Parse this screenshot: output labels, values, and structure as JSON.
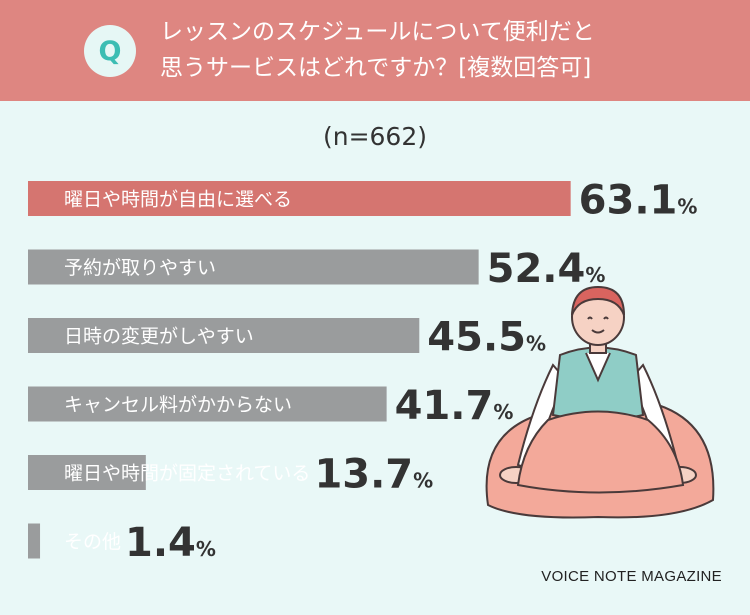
{
  "header": {
    "badge": "Q",
    "question_line1": "レッスンのスケジュールについて便利だと",
    "question_line2": "思うサービスはどれですか？[複数回答可]"
  },
  "sample": "(n=662)",
  "brand": "VOICE NOTE MAGAZINE",
  "colors": {
    "header_bg": "#de8681",
    "highlight_bar": "#d57570",
    "bar": "#9a9c9d",
    "background": "#e9f8f7",
    "badge_text": "#3cbdb3"
  },
  "chart_data": {
    "type": "bar",
    "orientation": "horizontal",
    "categories": [
      "曜日や時間が自由に選べる",
      "予約が取りやすい",
      "日時の変更がしやすい",
      "キャンセル料がかからない",
      "曜日や時間が固定されている",
      "その他"
    ],
    "values": [
      63.1,
      52.4,
      45.5,
      41.7,
      13.7,
      1.4
    ],
    "value_labels": [
      "63.1",
      "52.4",
      "45.5",
      "41.7",
      "13.7",
      "1.4"
    ],
    "unit": "%",
    "highlight_index": 0
  }
}
